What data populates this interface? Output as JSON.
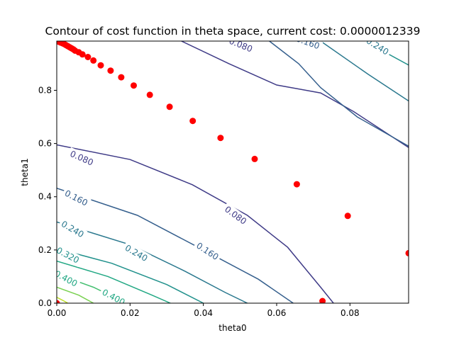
{
  "chart_data": {
    "type": "contour",
    "title": "Contour of cost function in theta space, current cost: 0.0000012339",
    "xlabel": "theta0",
    "ylabel": "theta1",
    "xlim": [
      0,
      0.096
    ],
    "ylim": [
      0,
      0.985
    ],
    "x_ticks": [
      "0.00",
      "0.02",
      "0.04",
      "0.06",
      "0.08"
    ],
    "x_tick_values": [
      0,
      0.02,
      0.04,
      0.06,
      0.08
    ],
    "y_ticks": [
      "0.0",
      "0.2",
      "0.4",
      "0.6",
      "0.8"
    ],
    "y_tick_values": [
      0,
      0.2,
      0.4,
      0.6,
      0.8
    ],
    "contour_levels": [
      {
        "level": 0.08,
        "color": "#3f3b87",
        "label": "0.080",
        "lines": [
          [
            [
              0,
              0.595
            ],
            [
              0.02,
              0.54
            ],
            [
              0.037,
              0.445
            ],
            [
              0.052,
              0.33
            ],
            [
              0.063,
              0.21
            ],
            [
              0.072,
              0.06
            ],
            [
              0.0755,
              0
            ]
          ],
          [
            [
              0.034,
              0.985
            ],
            [
              0.047,
              0.9
            ],
            [
              0.06,
              0.82
            ],
            [
              0.072,
              0.79
            ],
            [
              0.081,
              0.72
            ],
            [
              0.096,
              0.585
            ]
          ]
        ],
        "labels": [
          {
            "x": 0.0068,
            "y": 0.545,
            "angle": 24
          },
          {
            "x": 0.0488,
            "y": 0.33,
            "angle": 36
          },
          {
            "x": 0.0502,
            "y": 0.97,
            "angle": 22
          }
        ]
      },
      {
        "level": 0.16,
        "color": "#355f8d",
        "label": "0.160",
        "lines": [
          [
            [
              0,
              0.432
            ],
            [
              0.022,
              0.33
            ],
            [
              0.04,
              0.2
            ],
            [
              0.055,
              0.09
            ],
            [
              0.0645,
              0
            ]
          ],
          [
            [
              0.058,
              0.985
            ],
            [
              0.066,
              0.9
            ],
            [
              0.072,
              0.81
            ],
            [
              0.082,
              0.7
            ],
            [
              0.096,
              0.59
            ]
          ]
        ],
        "labels": [
          {
            "x": 0.0053,
            "y": 0.395,
            "angle": 27
          },
          {
            "x": 0.0411,
            "y": 0.195,
            "angle": 33
          },
          {
            "x": 0.0685,
            "y": 0.98,
            "angle": 20
          }
        ]
      },
      {
        "level": 0.24,
        "color": "#2a788e",
        "label": "0.240",
        "lines": [
          [
            [
              0,
              0.305
            ],
            [
              0.02,
              0.22
            ],
            [
              0.035,
              0.12
            ],
            [
              0.046,
              0.04
            ],
            [
              0.052,
              0
            ]
          ],
          [
            [
              0.072,
              0.985
            ],
            [
              0.085,
              0.86
            ],
            [
              0.096,
              0.76
            ]
          ]
        ],
        "labels": [
          {
            "x": 0.0043,
            "y": 0.278,
            "angle": 30
          },
          {
            "x": 0.0217,
            "y": 0.188,
            "angle": 30
          },
          {
            "x": 0.0875,
            "y": 0.965,
            "angle": 32
          }
        ]
      },
      {
        "level": 0.32,
        "color": "#21918c",
        "label": "0.320",
        "lines": [
          [
            [
              0,
              0.205
            ],
            [
              0.015,
              0.15
            ],
            [
              0.03,
              0.07
            ],
            [
              0.04,
              0
            ]
          ],
          [
            [
              0.084,
              0.985
            ],
            [
              0.096,
              0.895
            ]
          ]
        ],
        "labels": [
          {
            "x": 0.003,
            "y": 0.18,
            "angle": 28
          }
        ]
      },
      {
        "level": 0.4,
        "color": "#22a884",
        "label": "0.400",
        "lines": [
          [
            [
              0,
              0.158
            ],
            [
              0.014,
              0.1
            ],
            [
              0.026,
              0.03
            ],
            [
              0.031,
              0
            ]
          ]
        ],
        "labels": [
          {
            "x": 0.0025,
            "y": 0.092,
            "angle": 28
          },
          {
            "x": 0.0155,
            "y": 0.022,
            "angle": 28
          }
        ]
      },
      {
        "level": 0.48,
        "color": "#44bf70",
        "label": "",
        "lines": [
          [
            [
              0,
              0.11
            ],
            [
              0.01,
              0.06
            ],
            [
              0.019,
              0
            ]
          ]
        ],
        "labels": []
      },
      {
        "level": 0.56,
        "color": "#7ad151",
        "label": "",
        "lines": [
          [
            [
              0,
              0.06
            ],
            [
              0.006,
              0.03
            ],
            [
              0.01,
              0
            ]
          ]
        ],
        "labels": []
      },
      {
        "level": 0.64,
        "color": "#bddf26",
        "label": "",
        "lines": [
          [
            [
              0,
              0.022
            ],
            [
              0.002,
              0.008
            ],
            [
              0.003,
              0
            ]
          ]
        ],
        "labels": []
      }
    ],
    "series": [
      {
        "type": "scatter",
        "color": "#ff0000",
        "points": [
          [
            0.0,
            0.985
          ],
          [
            0.0005,
            0.983
          ],
          [
            0.001,
            0.98
          ],
          [
            0.0015,
            0.977
          ],
          [
            0.002,
            0.974
          ],
          [
            0.0025,
            0.97
          ],
          [
            0.003,
            0.966
          ],
          [
            0.0035,
            0.962
          ],
          [
            0.004,
            0.958
          ],
          [
            0.0045,
            0.954
          ],
          [
            0.005,
            0.949
          ],
          [
            0.006,
            0.943
          ],
          [
            0.007,
            0.935
          ],
          [
            0.0085,
            0.925
          ],
          [
            0.01,
            0.912
          ],
          [
            0.012,
            0.894
          ],
          [
            0.0147,
            0.874
          ],
          [
            0.0176,
            0.849
          ],
          [
            0.021,
            0.818
          ],
          [
            0.0254,
            0.783
          ],
          [
            0.0308,
            0.738
          ],
          [
            0.0371,
            0.685
          ],
          [
            0.0447,
            0.621
          ],
          [
            0.054,
            0.542
          ],
          [
            0.0655,
            0.447
          ],
          [
            0.0794,
            0.328
          ],
          [
            0.096,
            0.188
          ],
          [
            0.0725,
            0.008
          ],
          [
            0.0,
            0.0
          ]
        ]
      }
    ]
  }
}
